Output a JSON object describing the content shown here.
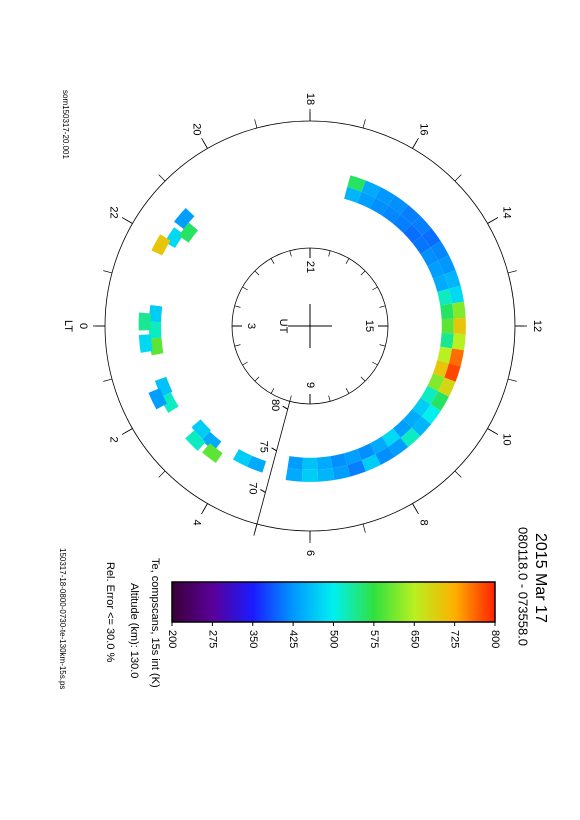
{
  "chart_data": {
    "type": "polar",
    "file_label": "som150317-20.001",
    "title": "2015 Mar 17",
    "subtitle": "080118.0 - 073558.0",
    "colorbar_label": "Te, compscans, 15s int (K)",
    "altitude_label": "Altitude (km): 130.0",
    "error_label": "Rel. Error <= 30.0 %",
    "footer": "150317-18-0800-0730-te-130km-15s.ps",
    "lt_label": "LT",
    "lt_ticks": [
      0,
      2,
      4,
      6,
      8,
      10,
      12,
      14,
      16,
      18,
      20,
      22
    ],
    "ut_label": "UT",
    "ut_ticks": [
      3,
      9,
      15,
      21
    ],
    "lat_lim": [
      90,
      66.2
    ],
    "lat_ticks": [
      80,
      75,
      70
    ],
    "clim": [
      200,
      800
    ],
    "cticks": [
      200,
      275,
      350,
      425,
      500,
      575,
      650,
      725,
      800
    ],
    "colormap": [
      "#3a0038",
      "#5a0098",
      "#1a1aff",
      "#0098ff",
      "#00f0f0",
      "#30e040",
      "#b8f020",
      "#ffb000",
      "#ff2000"
    ],
    "cells": {
      "lt": [
        16.8,
        16.4,
        16.0,
        15.6,
        15.2,
        14.8,
        14.4,
        14.0,
        13.6,
        13.2,
        12.8,
        12.4,
        12.0,
        11.6,
        11.2,
        10.8,
        10.4,
        10.0,
        9.6,
        9.2,
        8.8,
        8.4,
        8.0,
        7.6,
        7.2,
        6.8,
        6.4,
        6.0,
        5.6,
        16.8,
        16.4,
        16.0,
        15.6,
        15.2,
        14.8,
        14.4,
        14.0,
        13.6,
        13.2,
        12.8,
        12.4,
        12.0,
        11.6,
        11.2,
        10.8,
        10.4,
        10.0,
        9.6,
        9.2,
        8.8,
        8.4,
        8.0,
        7.6,
        7.2,
        6.8,
        6.4,
        6.0,
        5.6,
        21.8,
        21.5,
        22.1,
        21.3,
        23.7,
        0.1,
        0.5,
        23.9,
        0.4,
        1.5,
        1.9,
        1.7,
        2.9,
        3.3,
        3.0,
        3.5,
        4.6,
        4.2
      ],
      "lat": [
        74.0,
        74.0,
        74.0,
        74.0,
        74.0,
        74.0,
        74.0,
        74.0,
        74.0,
        74.0,
        74.0,
        74.0,
        74.0,
        74.0,
        74.0,
        74.0,
        74.0,
        74.0,
        74.0,
        74.0,
        74.0,
        74.0,
        74.0,
        74.0,
        74.0,
        74.0,
        74.0,
        74.0,
        74.0,
        72.6,
        72.6,
        72.6,
        72.6,
        72.6,
        72.6,
        72.6,
        72.6,
        72.6,
        72.6,
        72.6,
        72.6,
        72.6,
        72.6,
        72.6,
        72.6,
        72.6,
        72.6,
        72.6,
        72.6,
        72.6,
        72.6,
        72.6,
        72.6,
        72.6,
        72.6,
        72.6,
        72.6,
        72.6,
        71.2,
        72.2,
        70.3,
        70.8,
        72.0,
        72.0,
        72.0,
        70.8,
        70.8,
        71.6,
        71.4,
        70.4,
        72.6,
        72.4,
        71.2,
        71.4,
        72.8,
        72.8
      ],
      "values": [
        450,
        430,
        420,
        415,
        410,
        400,
        405,
        420,
        430,
        440,
        520,
        560,
        600,
        540,
        650,
        700,
        620,
        520,
        470,
        440,
        430,
        480,
        440,
        420,
        430,
        420,
        440,
        460,
        430,
        560,
        440,
        425,
        420,
        410,
        410,
        400,
        415,
        425,
        450,
        480,
        620,
        700,
        650,
        760,
        780,
        680,
        560,
        500,
        450,
        520,
        430,
        420,
        470,
        410,
        430,
        450,
        470,
        440,
        480,
        560,
        700,
        430,
        470,
        520,
        600,
        540,
        480,
        460,
        520,
        430,
        470,
        440,
        520,
        600,
        440,
        470
      ]
    }
  }
}
